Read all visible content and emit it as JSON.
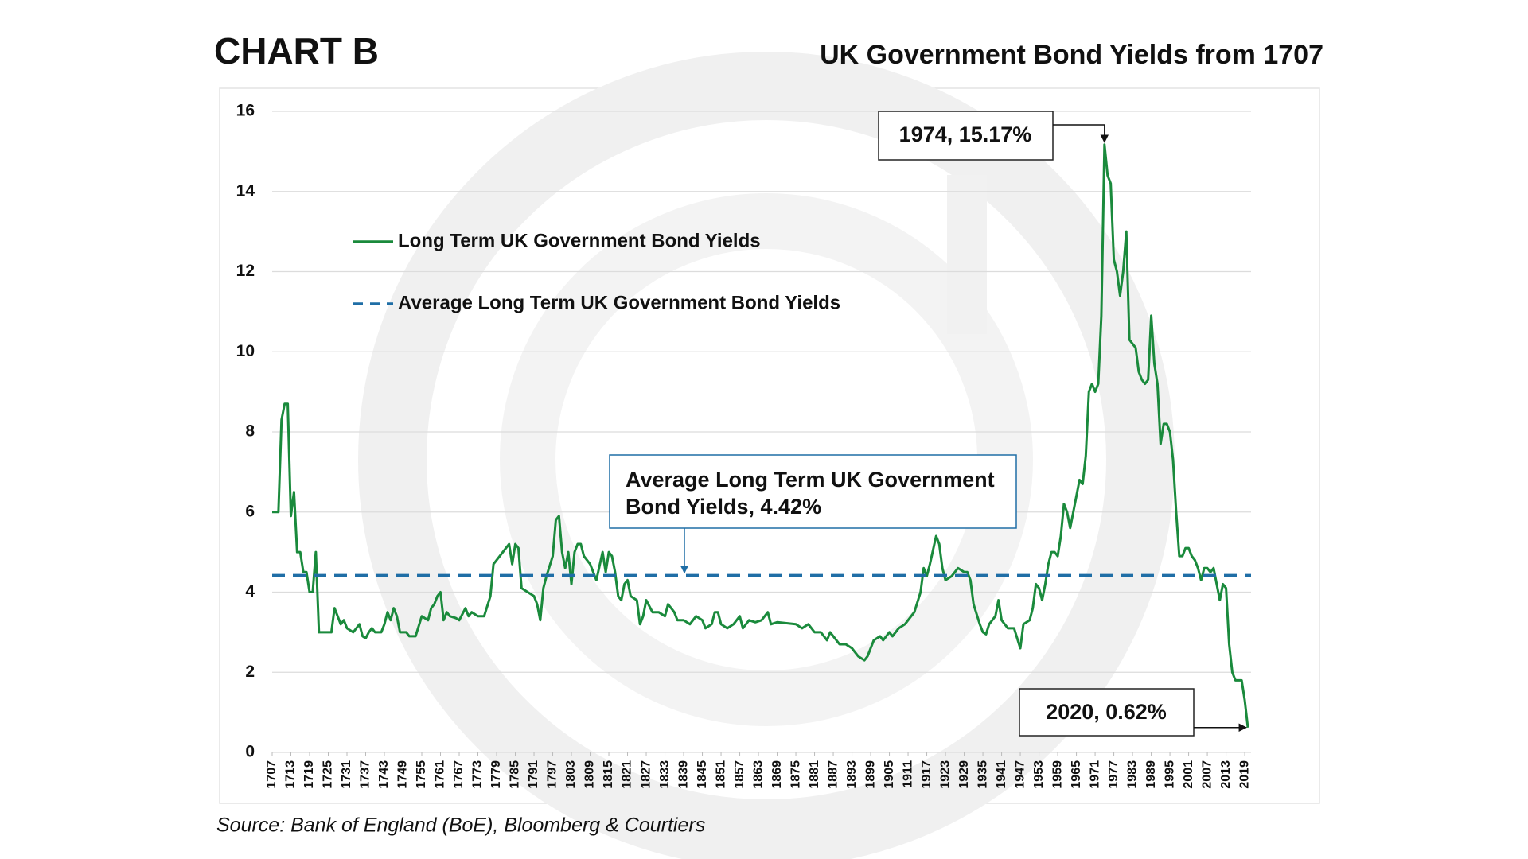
{
  "chart_data": {
    "type": "line",
    "label": "CHART B",
    "title": "UK Government Bond Yields from 1707",
    "source": "Source: Bank of England (BoE), Bloomberg & Courtiers",
    "xlim": [
      1707,
      2020
    ],
    "xticks": [
      1707,
      1713,
      1719,
      1725,
      1731,
      1737,
      1743,
      1749,
      1755,
      1761,
      1767,
      1773,
      1779,
      1785,
      1791,
      1797,
      1803,
      1809,
      1815,
      1821,
      1827,
      1833,
      1839,
      1845,
      1851,
      1857,
      1863,
      1869,
      1875,
      1881,
      1887,
      1893,
      1899,
      1905,
      1911,
      1917,
      1923,
      1929,
      1935,
      1941,
      1947,
      1953,
      1959,
      1965,
      1971,
      1977,
      1983,
      1989,
      1995,
      2001,
      2007,
      2013,
      2019
    ],
    "ylim": [
      0,
      16
    ],
    "yticks": [
      0,
      2,
      4,
      6,
      8,
      10,
      12,
      14,
      16
    ],
    "grid": true,
    "series": [
      {
        "name": "Long Term UK Government Bond Yields",
        "color": "#1a8a3c",
        "x": [
          1707,
          1709,
          1710,
          1711,
          1712,
          1713,
          1714,
          1715,
          1716,
          1717,
          1718,
          1719,
          1720,
          1721,
          1722,
          1726,
          1727,
          1728,
          1729,
          1730,
          1731,
          1733,
          1735,
          1736,
          1737,
          1738,
          1739,
          1740,
          1742,
          1743,
          1744,
          1745,
          1746,
          1747,
          1748,
          1750,
          1751,
          1753,
          1755,
          1757,
          1758,
          1759,
          1760,
          1761,
          1762,
          1763,
          1764,
          1766,
          1767,
          1769,
          1770,
          1771,
          1773,
          1775,
          1777,
          1778,
          1780,
          1782,
          1783,
          1784,
          1785,
          1786,
          1787,
          1789,
          1791,
          1792,
          1793,
          1794,
          1795,
          1797,
          1798,
          1799,
          1800,
          1801,
          1802,
          1803,
          1804,
          1805,
          1806,
          1807,
          1809,
          1811,
          1813,
          1814,
          1815,
          1816,
          1817,
          1818,
          1819,
          1820,
          1821,
          1822,
          1824,
          1825,
          1826,
          1827,
          1829,
          1831,
          1833,
          1834,
          1836,
          1837,
          1839,
          1841,
          1843,
          1845,
          1846,
          1848,
          1849,
          1850,
          1851,
          1853,
          1855,
          1856,
          1857,
          1858,
          1860,
          1862,
          1864,
          1866,
          1867,
          1869,
          1875,
          1877,
          1879,
          1881,
          1883,
          1885,
          1886,
          1888,
          1889,
          1891,
          1893,
          1895,
          1897,
          1898,
          1900,
          1902,
          1903,
          1905,
          1906,
          1908,
          1910,
          1912,
          1913,
          1915,
          1916,
          1917,
          1918,
          1920,
          1921,
          1922,
          1923,
          1925,
          1927,
          1929,
          1930,
          1931,
          1932,
          1934,
          1935,
          1936,
          1937,
          1939,
          1940,
          1941,
          1943,
          1945,
          1946,
          1947,
          1948,
          1950,
          1951,
          1952,
          1953,
          1954,
          1955,
          1956,
          1957,
          1958,
          1959,
          1960,
          1961,
          1962,
          1963,
          1964,
          1966,
          1967,
          1968,
          1969,
          1970,
          1971,
          1972,
          1973,
          1974,
          1975,
          1976,
          1977,
          1978,
          1979,
          1980,
          1981,
          1982,
          1983,
          1984,
          1985,
          1986,
          1987,
          1988,
          1989,
          1990,
          1991,
          1992,
          1993,
          1994,
          1995,
          1996,
          1997,
          1998,
          1999,
          2000,
          2001,
          2002,
          2003,
          2004,
          2005,
          2006,
          2007,
          2008,
          2009,
          2010,
          2011,
          2012,
          2013,
          2014,
          2015,
          2016,
          2017,
          2018,
          2019,
          2020
        ],
        "values": [
          6,
          6,
          8.3,
          8.7,
          8.7,
          5.9,
          6.5,
          5,
          5,
          4.5,
          4.5,
          4,
          4,
          5,
          3,
          3,
          3.6,
          3.4,
          3.2,
          3.3,
          3.1,
          3,
          3.2,
          2.9,
          2.85,
          3,
          3.1,
          3,
          3,
          3.2,
          3.5,
          3.3,
          3.6,
          3.4,
          3,
          3,
          2.9,
          2.9,
          3.4,
          3.3,
          3.6,
          3.7,
          3.9,
          4,
          3.3,
          3.5,
          3.4,
          3.35,
          3.3,
          3.6,
          3.4,
          3.5,
          3.4,
          3.4,
          3.9,
          4.7,
          4.9,
          5.1,
          5.2,
          4.7,
          5.2,
          5.1,
          4.1,
          4,
          3.9,
          3.7,
          3.3,
          4.1,
          4.4,
          4.9,
          5.8,
          5.9,
          5,
          4.6,
          5,
          4.2,
          5,
          5.2,
          5.2,
          4.9,
          4.7,
          4.3,
          5,
          4.5,
          5,
          4.9,
          4.5,
          3.9,
          3.8,
          4.2,
          4.3,
          3.9,
          3.8,
          3.2,
          3.4,
          3.8,
          3.5,
          3.5,
          3.4,
          3.7,
          3.5,
          3.3,
          3.3,
          3.2,
          3.4,
          3.3,
          3.1,
          3.2,
          3.5,
          3.5,
          3.2,
          3.1,
          3.2,
          3.3,
          3.4,
          3.1,
          3.3,
          3.25,
          3.3,
          3.5,
          3.2,
          3.25,
          3.2,
          3.1,
          3.2,
          3,
          3,
          2.8,
          3,
          2.8,
          2.7,
          2.7,
          2.6,
          2.4,
          2.3,
          2.4,
          2.8,
          2.9,
          2.8,
          3,
          2.9,
          3.1,
          3.2,
          3.4,
          3.5,
          4,
          4.6,
          4.4,
          4.7,
          5.4,
          5.2,
          4.6,
          4.3,
          4.4,
          4.6,
          4.5,
          4.5,
          4.3,
          3.7,
          3.2,
          3,
          2.95,
          3.2,
          3.4,
          3.8,
          3.3,
          3.1,
          3.1,
          2.85,
          2.6,
          3.2,
          3.3,
          3.6,
          4.2,
          4.1,
          3.8,
          4.2,
          4.7,
          5,
          5,
          4.9,
          5.4,
          6.2,
          6,
          5.6,
          6,
          6.8,
          6.7,
          7.4,
          9,
          9.2,
          9,
          9.2,
          10.9,
          15.17,
          14.4,
          14.2,
          12.3,
          12,
          11.4,
          12,
          13,
          10.3,
          10.2,
          10.1,
          9.5,
          9.3,
          9.2,
          9.3,
          10.9,
          9.7,
          9.2,
          7.7,
          8.2,
          8.2,
          8,
          7.3,
          6,
          4.9,
          4.9,
          5.1,
          5.1,
          4.9,
          4.8,
          4.6,
          4.3,
          4.6,
          4.6,
          4.5,
          4.6,
          4.2,
          3.8,
          4.2,
          4.1,
          2.7,
          2,
          1.8,
          1.8,
          1.8,
          1.3,
          0.62
        ]
      }
    ],
    "average": {
      "name": "Average Long Term UK Government Bond Yields",
      "value": 4.42,
      "color": "#1f6ea6",
      "style": "dashed"
    },
    "annotations": [
      {
        "text": "1974, 15.17%",
        "x": 1974,
        "y": 15.17
      },
      {
        "lines": [
          "Average Long Term UK Government",
          "Bond Yields, 4.42%"
        ]
      },
      {
        "text": "2020, 0.62%",
        "x": 2020,
        "y": 0.62
      }
    ]
  }
}
